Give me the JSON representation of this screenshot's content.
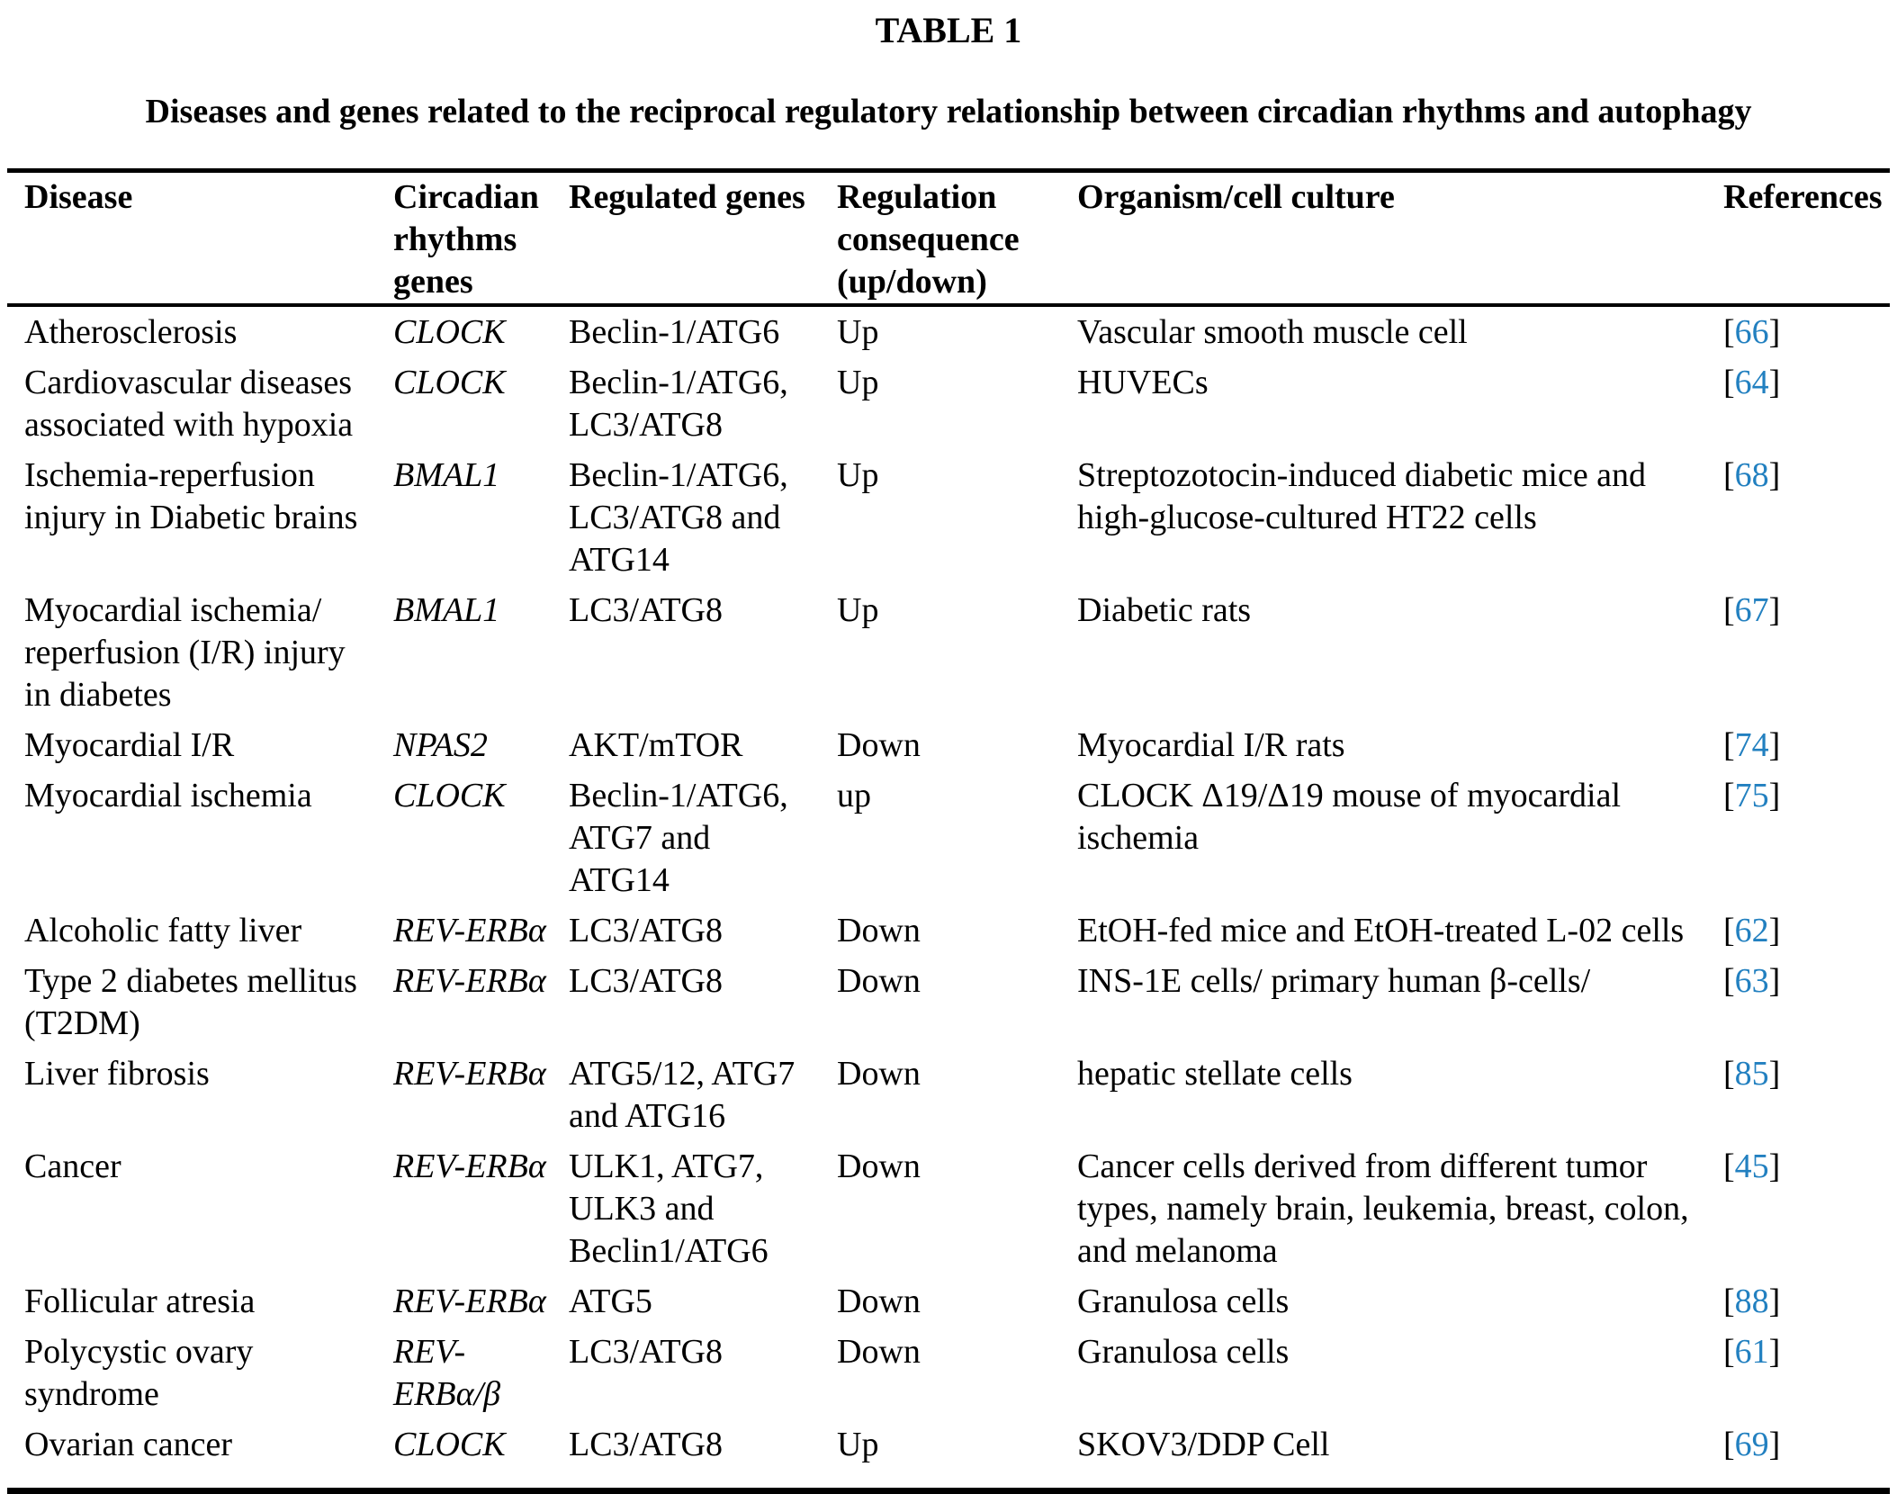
{
  "page": {
    "table_label": "TABLE 1",
    "caption": "Diseases and genes related to the reciprocal regulatory relationship between circadian rhythms and autophagy"
  },
  "table": {
    "reference_color": "#2280c0",
    "bracket_open": "[",
    "bracket_close": "]",
    "columns": [
      {
        "label": "Disease"
      },
      {
        "label": "Circadian\nrhythms\ngenes"
      },
      {
        "label": "Regulated genes"
      },
      {
        "label": "Regulation\nconsequence\n(up/down)"
      },
      {
        "label": "Organism/cell culture"
      },
      {
        "label": "References"
      }
    ],
    "rows": [
      {
        "disease": "Atherosclerosis",
        "circadian_genes": "CLOCK",
        "regulated_genes": "Beclin-1/ATG6",
        "regulation": "Up",
        "organism": "Vascular smooth muscle cell",
        "ref": "66"
      },
      {
        "disease": "Cardiovascular diseases\nassociated with hypoxia",
        "circadian_genes": "CLOCK",
        "regulated_genes": "Beclin-1/ATG6,\nLC3/ATG8",
        "regulation": "Up",
        "organism": "HUVECs",
        "ref": "64"
      },
      {
        "disease": "Ischemia-reperfusion\ninjury in Diabetic brains",
        "circadian_genes": "BMAL1",
        "regulated_genes": "Beclin-1/ATG6,\nLC3/ATG8 and\nATG14",
        "regulation": "Up",
        "organism": "Streptozotocin-induced diabetic mice and\nhigh-glucose-cultured HT22 cells",
        "ref": "68"
      },
      {
        "disease": "Myocardial ischemia/\nreperfusion (I/R) injury\nin diabetes",
        "circadian_genes": "BMAL1",
        "regulated_genes": "LC3/ATG8",
        "regulation": "Up",
        "organism": "Diabetic rats",
        "ref": "67"
      },
      {
        "disease": "Myocardial I/R",
        "circadian_genes": "NPAS2",
        "regulated_genes": "AKT/mTOR",
        "regulation": "Down",
        "organism": "Myocardial I/R rats",
        "ref": "74"
      },
      {
        "disease": "Myocardial ischemia",
        "circadian_genes": "CLOCK",
        "regulated_genes": "Beclin-1/ATG6,\nATG7 and\nATG14",
        "regulation": "up",
        "organism": "CLOCK Δ19/Δ19 mouse of myocardial\nischemia",
        "ref": "75"
      },
      {
        "disease": "Alcoholic fatty liver",
        "circadian_genes": "REV-ERBα",
        "regulated_genes": "LC3/ATG8",
        "regulation": "Down",
        "organism": "EtOH-fed mice and EtOH-treated L-02 cells",
        "ref": "62"
      },
      {
        "disease": "Type 2 diabetes mellitus\n(T2DM)",
        "circadian_genes": "REV-ERBα",
        "regulated_genes": "LC3/ATG8",
        "regulation": "Down",
        "organism": "INS-1E cells/ primary human β-cells/",
        "ref": "63"
      },
      {
        "disease": "Liver fibrosis",
        "circadian_genes": "REV-ERBα",
        "regulated_genes": "ATG5/12, ATG7\nand ATG16",
        "regulation": "Down",
        "organism": "hepatic stellate cells",
        "ref": "85"
      },
      {
        "disease": "Cancer",
        "circadian_genes": "REV-ERBα",
        "regulated_genes": "ULK1, ATG7,\nULK3 and\nBeclin1/ATG6",
        "regulation": "Down",
        "organism": "Cancer cells derived from different tumor\ntypes, namely brain, leukemia, breast, colon,\nand melanoma",
        "ref": "45"
      },
      {
        "disease": "Follicular atresia",
        "circadian_genes": "REV-ERBα",
        "regulated_genes": "ATG5",
        "regulation": "Down",
        "organism": "Granulosa cells",
        "ref": "88"
      },
      {
        "disease": "Polycystic ovary\nsyndrome",
        "circadian_genes": "REV-\nERBα/β",
        "regulated_genes": "LC3/ATG8",
        "regulation": "Down",
        "organism": "Granulosa cells",
        "ref": "61"
      },
      {
        "disease": "Ovarian cancer",
        "circadian_genes": "CLOCK",
        "regulated_genes": "LC3/ATG8",
        "regulation": "Up",
        "organism": "SKOV3/DDP Cell",
        "ref": "69"
      }
    ]
  }
}
